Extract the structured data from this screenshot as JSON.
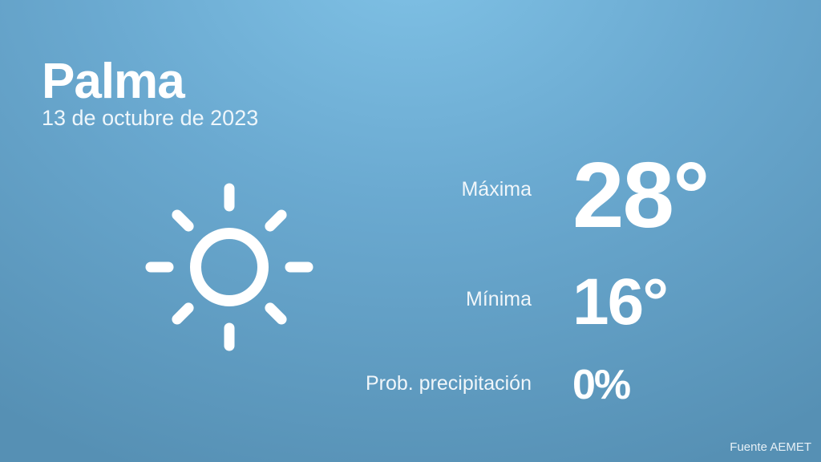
{
  "location": {
    "city": "Palma",
    "date": "13 de octubre de 2023"
  },
  "weather": {
    "icon": "sun-icon",
    "max_label": "Máxima",
    "max_value": "28°",
    "min_label": "Mínima",
    "min_value": "16°",
    "precip_label": "Prob. precipitación",
    "precip_value": "0%"
  },
  "footer": {
    "source": "Fuente AEMET"
  },
  "colors": {
    "background_top": "#80c2e6",
    "background_bottom": "#5690b4",
    "text": "#ffffff"
  }
}
